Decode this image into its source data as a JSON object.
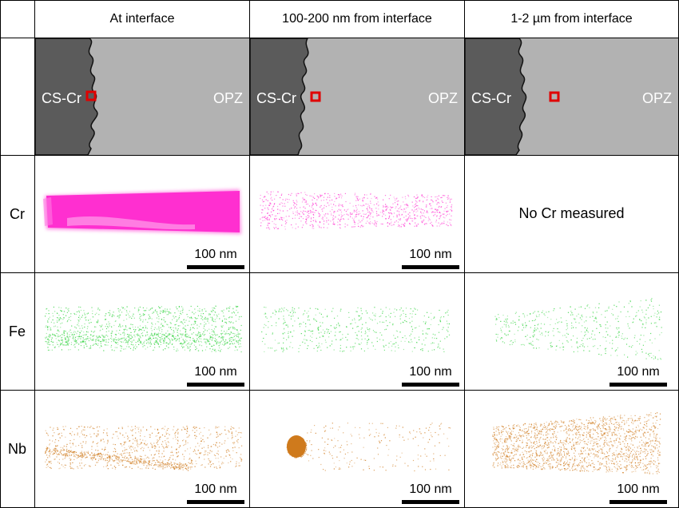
{
  "column_headers": [
    "At interface",
    "100-200 nm from interface",
    "1-2 µm from interface"
  ],
  "row_labels": {
    "cr": "Cr",
    "fe": "Fe",
    "nb": "Nb"
  },
  "schematic": {
    "left_label": "CS-Cr",
    "right_label": "OPZ"
  },
  "scale_bar_label": "100 nm",
  "no_cr_text": "No Cr measured",
  "colors": {
    "cr": "#ff2fd0",
    "fe": "#2ed23b",
    "nb": "#cf7a1c",
    "cs_cr_region": "#5b5b5b",
    "opz_region": "#b2b2b2",
    "marker": "#e00000"
  }
}
